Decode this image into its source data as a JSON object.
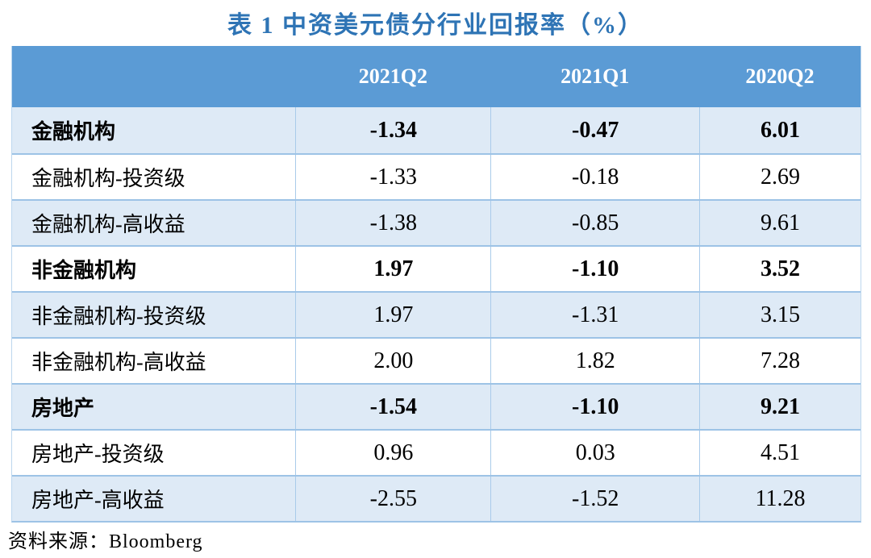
{
  "title": "表 1 中资美元债分行业回报率（%）",
  "source": "资料来源：Bloomberg",
  "colors": {
    "title_text": "#2E74B5",
    "header_bg": "#5B9BD5",
    "header_text": "#FFFFFF",
    "row_alt_bg": "#DEEAF6",
    "row_bg": "#FFFFFF",
    "border": "#9DC3E6",
    "body_text": "#000000"
  },
  "chart_data": {
    "type": "table",
    "title": "表 1 中资美元债分行业回报率（%）",
    "columns": [
      "",
      "2021Q2",
      "2021Q1",
      "2020Q2"
    ],
    "rows": [
      {
        "label": "金融机构",
        "values": [
          "-1.34",
          "-0.47",
          "6.01"
        ],
        "bold": true,
        "shaded": true
      },
      {
        "label": "金融机构-投资级",
        "values": [
          "-1.33",
          "-0.18",
          "2.69"
        ],
        "bold": false,
        "shaded": false
      },
      {
        "label": "金融机构-高收益",
        "values": [
          "-1.38",
          "-0.85",
          "9.61"
        ],
        "bold": false,
        "shaded": true
      },
      {
        "label": "非金融机构",
        "values": [
          "1.97",
          "-1.10",
          "3.52"
        ],
        "bold": true,
        "shaded": false
      },
      {
        "label": "非金融机构-投资级",
        "values": [
          "1.97",
          "-1.31",
          "3.15"
        ],
        "bold": false,
        "shaded": true
      },
      {
        "label": "非金融机构-高收益",
        "values": [
          "2.00",
          "1.82",
          "7.28"
        ],
        "bold": false,
        "shaded": false
      },
      {
        "label": "房地产",
        "values": [
          "-1.54",
          "-1.10",
          "9.21"
        ],
        "bold": true,
        "shaded": true
      },
      {
        "label": "房地产-投资级",
        "values": [
          "0.96",
          "0.03",
          "4.51"
        ],
        "bold": false,
        "shaded": false
      },
      {
        "label": "房地产-高收益",
        "values": [
          "-2.55",
          "-1.52",
          "11.28"
        ],
        "bold": false,
        "shaded": true
      }
    ],
    "source_note": "资料来源：Bloomberg"
  }
}
